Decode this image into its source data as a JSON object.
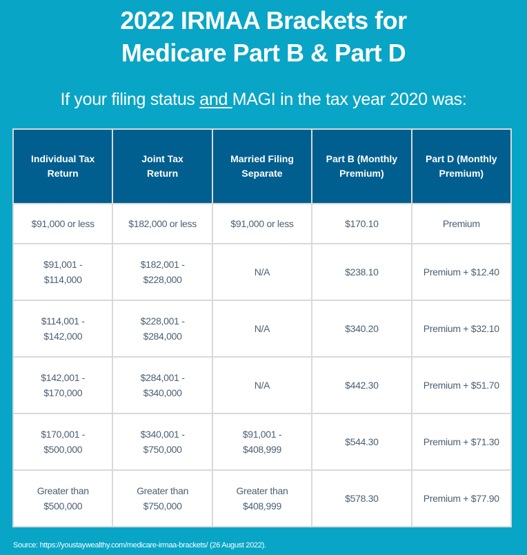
{
  "title": {
    "line1": "2022 IRMAA Brackets for",
    "line2": "Medicare Part B & Part D"
  },
  "subtitle": {
    "before": "If your filing status ",
    "underlined": "and ",
    "after": "MAGI in the tax year 2020 was:"
  },
  "table": {
    "headers": [
      {
        "line1": "Individual Tax",
        "line2": "Return"
      },
      {
        "line1": "Joint Tax",
        "line2": "Return"
      },
      {
        "line1": "Married Filing",
        "line2": "Separate"
      },
      {
        "line1": "Part B (Monthly",
        "line2": "Premium)"
      },
      {
        "line1": "Part D (Monthly",
        "line2": "Premium)"
      }
    ],
    "rows": [
      [
        {
          "l1": "$91,000 or less",
          "l2": ""
        },
        {
          "l1": "$182,000 or less",
          "l2": ""
        },
        {
          "l1": "$91,000 or less",
          "l2": ""
        },
        {
          "l1": "$170.10",
          "l2": ""
        },
        {
          "l1": "Premium",
          "l2": ""
        }
      ],
      [
        {
          "l1": "$91,001 -",
          "l2": "$114,000"
        },
        {
          "l1": "$182,001 -",
          "l2": "$228,000"
        },
        {
          "l1": "N/A",
          "l2": ""
        },
        {
          "l1": "$238.10",
          "l2": ""
        },
        {
          "l1": "Premium + $12.40",
          "l2": ""
        }
      ],
      [
        {
          "l1": "$114,001 -",
          "l2": "$142,000"
        },
        {
          "l1": "$228,001 -",
          "l2": "$284,000"
        },
        {
          "l1": "N/A",
          "l2": ""
        },
        {
          "l1": "$340.20",
          "l2": ""
        },
        {
          "l1": "Premium + $32.10",
          "l2": ""
        }
      ],
      [
        {
          "l1": "$142,001 -",
          "l2": "$170,000"
        },
        {
          "l1": "$284,001 -",
          "l2": "$340,000"
        },
        {
          "l1": "N/A",
          "l2": ""
        },
        {
          "l1": "$442.30",
          "l2": ""
        },
        {
          "l1": "Premium + $51.70",
          "l2": ""
        }
      ],
      [
        {
          "l1": "$170,001 -",
          "l2": "$500,000"
        },
        {
          "l1": "$340,001 -",
          "l2": "$750,000"
        },
        {
          "l1": "$91,001 -",
          "l2": "$408,999"
        },
        {
          "l1": "$544.30",
          "l2": ""
        },
        {
          "l1": "Premium + $71.30",
          "l2": ""
        }
      ],
      [
        {
          "l1": "Greater than",
          "l2": "$500,000"
        },
        {
          "l1": "Greater than",
          "l2": "$750,000"
        },
        {
          "l1": "Greater than",
          "l2": "$408,999"
        },
        {
          "l1": "$578.30",
          "l2": ""
        },
        {
          "l1": "Premium + $77.90",
          "l2": ""
        }
      ]
    ]
  },
  "source": "Source: https://youstaywealthy.com/medicare-irmaa-brackets/ (26 August 2022).",
  "colors": {
    "background": "#08a5c6",
    "header": "#005f8f",
    "cell_text": "#4a5f72",
    "border": "#d7d9db"
  }
}
